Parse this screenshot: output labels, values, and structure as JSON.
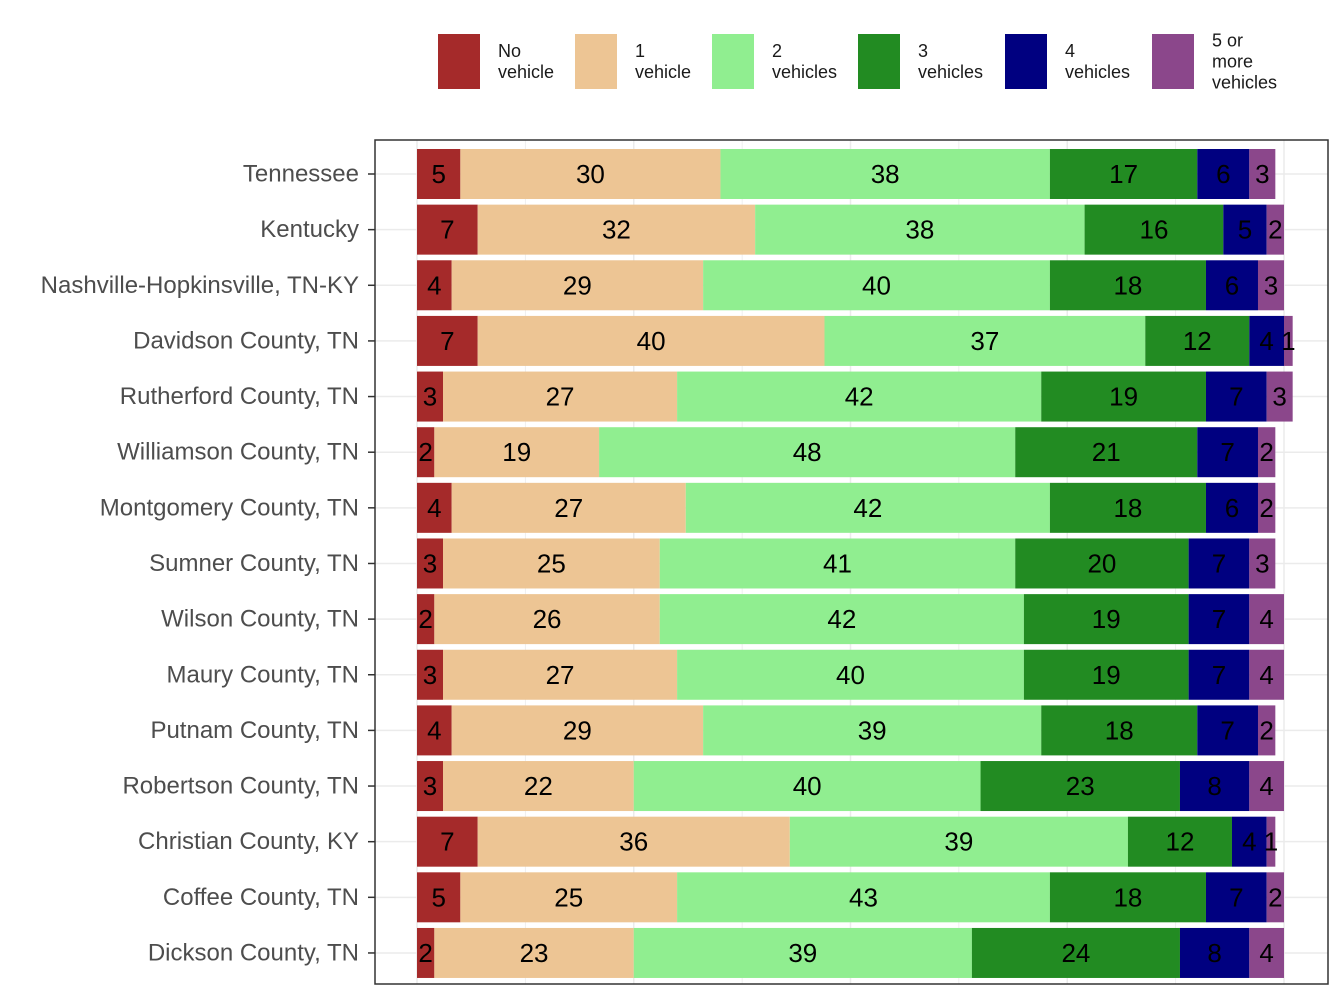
{
  "chart_data": {
    "type": "bar",
    "orientation": "horizontal",
    "stacked": true,
    "title": "",
    "xlabel": "",
    "ylabel": "",
    "xlim": [
      0,
      100
    ],
    "grid": true,
    "legend_position": "top",
    "categories": [
      "Tennessee",
      "Kentucky",
      "Nashville-Hopkinsville, TN-KY",
      "Davidson County, TN",
      "Rutherford County, TN",
      "Williamson County, TN",
      "Montgomery County, TN",
      "Sumner County, TN",
      "Wilson County, TN",
      "Maury County, TN",
      "Putnam County, TN",
      "Robertson County, TN",
      "Christian County, KY",
      "Coffee County, TN",
      "Dickson County, TN"
    ],
    "series": [
      {
        "name": "No vehicle",
        "legend_lines": [
          "No",
          "vehicle"
        ],
        "color": "#A52A2A",
        "values": [
          5,
          7,
          4,
          7,
          3,
          2,
          4,
          3,
          2,
          3,
          4,
          3,
          7,
          5,
          2
        ]
      },
      {
        "name": "1 vehicle",
        "legend_lines": [
          "1",
          "vehicle"
        ],
        "color": "#EDC594",
        "values": [
          30,
          32,
          29,
          40,
          27,
          19,
          27,
          25,
          26,
          27,
          29,
          22,
          36,
          25,
          23
        ]
      },
      {
        "name": "2 vehicles",
        "legend_lines": [
          "2",
          "vehicles"
        ],
        "color": "#90EE90",
        "values": [
          38,
          38,
          40,
          37,
          42,
          48,
          42,
          41,
          42,
          40,
          39,
          40,
          39,
          43,
          39
        ]
      },
      {
        "name": "3 vehicles",
        "legend_lines": [
          "3",
          "vehicles"
        ],
        "color": "#228B22",
        "values": [
          17,
          16,
          18,
          12,
          19,
          21,
          18,
          20,
          19,
          19,
          18,
          23,
          12,
          18,
          24
        ]
      },
      {
        "name": "4 vehicles",
        "legend_lines": [
          "4",
          "vehicles"
        ],
        "color": "#000080",
        "values": [
          6,
          5,
          6,
          4,
          7,
          7,
          6,
          7,
          7,
          7,
          7,
          8,
          4,
          7,
          8
        ]
      },
      {
        "name": "5 or more vehicles",
        "legend_lines": [
          "5 or",
          "more",
          "vehicles"
        ],
        "color": "#8B478B",
        "values": [
          3,
          2,
          3,
          1,
          3,
          2,
          2,
          3,
          4,
          4,
          2,
          4,
          1,
          2,
          4
        ]
      }
    ]
  }
}
